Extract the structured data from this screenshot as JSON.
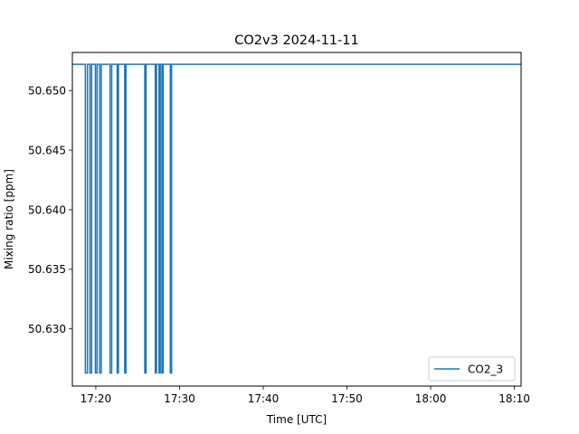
{
  "chart_data": {
    "type": "line",
    "title": "CO2v3 2024-11-11",
    "xlabel": "Time [UTC]",
    "ylabel": "Mixing ratio [ppm]",
    "xlim_minutes": [
      1037.2,
      1090.8
    ],
    "ylim": [
      50.6252,
      50.6532
    ],
    "x_ticks": [
      {
        "minutes": 1040,
        "label": "17:20"
      },
      {
        "minutes": 1050,
        "label": "17:30"
      },
      {
        "minutes": 1060,
        "label": "17:40"
      },
      {
        "minutes": 1070,
        "label": "17:50"
      },
      {
        "minutes": 1080,
        "label": "18:00"
      },
      {
        "minutes": 1090,
        "label": "18:10"
      }
    ],
    "y_ticks": [
      {
        "value": 50.63,
        "label": "50.630"
      },
      {
        "value": 50.635,
        "label": "50.635"
      },
      {
        "value": 50.64,
        "label": "50.640"
      },
      {
        "value": 50.645,
        "label": "50.645"
      },
      {
        "value": 50.65,
        "label": "50.650"
      }
    ],
    "grid": false,
    "legend_position": "lower-right",
    "series": [
      {
        "name": "CO2_3",
        "color": "#1f77b4",
        "baseline": 50.6522,
        "dip_value": 50.6263,
        "start_minutes": 1037.2,
        "end_minutes": 1090.8,
        "dips": [
          {
            "start": 1038.75,
            "end": 1039.0
          },
          {
            "start": 1039.3,
            "end": 1039.5
          },
          {
            "start": 1039.95,
            "end": 1040.15
          },
          {
            "start": 1040.45,
            "end": 1040.65
          },
          {
            "start": 1041.7,
            "end": 1041.9
          },
          {
            "start": 1042.55,
            "end": 1042.7
          },
          {
            "start": 1043.45,
            "end": 1043.6
          },
          {
            "start": 1045.85,
            "end": 1046.0
          },
          {
            "start": 1047.1,
            "end": 1047.25
          },
          {
            "start": 1047.55,
            "end": 1047.7
          },
          {
            "start": 1047.9,
            "end": 1048.05
          },
          {
            "start": 1048.9,
            "end": 1049.05
          }
        ]
      }
    ]
  }
}
